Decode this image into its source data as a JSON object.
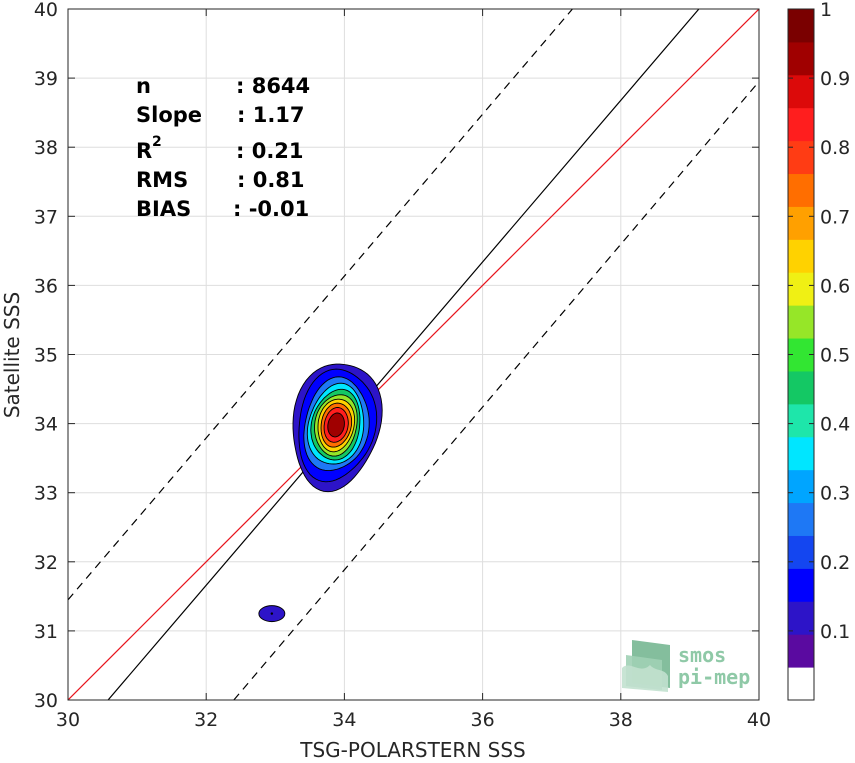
{
  "chart_data": {
    "type": "contour",
    "xlabel": "TSG-POLARSTERN SSS",
    "ylabel": "Satellite SSS",
    "xlim": [
      30,
      40
    ],
    "ylim": [
      30,
      40
    ],
    "xticks": [
      "30",
      "32",
      "34",
      "36",
      "38",
      "40"
    ],
    "yticks": [
      "30",
      "31",
      "32",
      "33",
      "34",
      "35",
      "36",
      "37",
      "38",
      "39",
      "40"
    ],
    "grid": true,
    "stats": {
      "n_label": "n",
      "n_value": ": 8644",
      "slope_label": "Slope",
      "slope_value": ": 1.17",
      "r2_label": "R",
      "r2_sup": "2",
      "r2_value": ": 0.21",
      "rms_label": "RMS",
      "rms_value": ": 0.81",
      "bias_label": "BIAS",
      "bias_value": ": -0.01"
    },
    "lines": {
      "identity": {
        "color": "#e8141c",
        "points": [
          [
            30,
            30
          ],
          [
            40,
            40
          ]
        ]
      },
      "fit": {
        "color": "#000000",
        "slope": 1.17,
        "points": [
          [
            30.58,
            30
          ],
          [
            39.13,
            40
          ]
        ]
      },
      "upper_bound": {
        "style": "dashed",
        "points": [
          [
            30,
            31.45
          ],
          [
            37.3,
            40
          ]
        ]
      },
      "lower_bound": {
        "style": "dashed",
        "points": [
          [
            32.4,
            30
          ],
          [
            40,
            38.95
          ]
        ]
      }
    },
    "density_center": [
      33.88,
      33.98
    ],
    "density_levels": [
      0.05,
      0.1,
      0.2,
      0.3,
      0.4,
      0.5,
      0.6,
      0.7,
      0.8,
      0.9
    ],
    "secondary_blob": {
      "center": [
        32.95,
        31.25
      ],
      "level": 0.05
    },
    "colorbar": {
      "min": 0,
      "max": 1,
      "ticks": [
        "0.1",
        "0.2",
        "0.3",
        "0.4",
        "0.5",
        "0.6",
        "0.7",
        "0.8",
        "0.9",
        "1"
      ],
      "colors": [
        "#ffffff",
        "#5a0aa0",
        "#2d14c8",
        "#0000ff",
        "#1446f0",
        "#1e78f5",
        "#00a5ff",
        "#00e6ff",
        "#1ee6aa",
        "#14c864",
        "#32e632",
        "#96e628",
        "#f0f014",
        "#ffd200",
        "#ffa000",
        "#ff6e00",
        "#ff3c14",
        "#ff1e1e",
        "#dc0a0a",
        "#a00000",
        "#7a0000"
      ]
    }
  },
  "logo": {
    "line1": "smos",
    "line2": "pi-mep"
  }
}
